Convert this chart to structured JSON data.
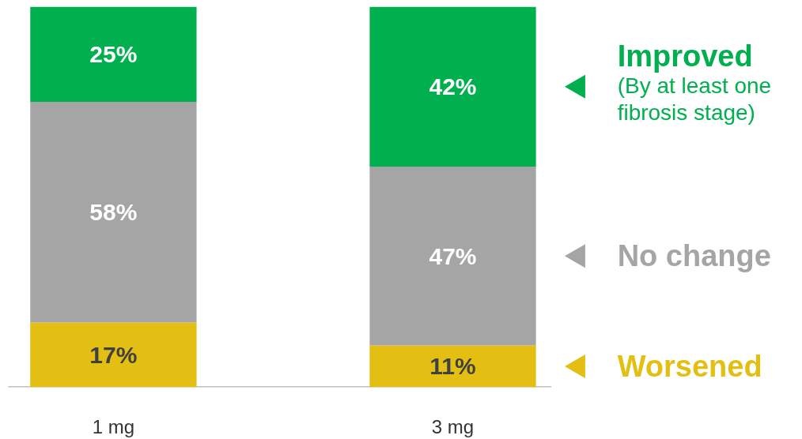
{
  "chart_data": {
    "type": "bar",
    "stacked": true,
    "categories": [
      "1 mg",
      "3 mg"
    ],
    "series": [
      {
        "name": "Worsened",
        "color": "#e3bf14",
        "values": [
          17,
          11
        ],
        "value_labels": [
          "17%",
          "11%"
        ]
      },
      {
        "name": "No change",
        "color": "#a5a5a5",
        "values": [
          58,
          47
        ],
        "value_labels": [
          "58%",
          "47%"
        ]
      },
      {
        "name": "Improved",
        "color": "#00b04f",
        "values": [
          25,
          42
        ],
        "value_labels": [
          "25%",
          "42%"
        ]
      }
    ],
    "legend": "right",
    "grid": false,
    "tick_labels": "x",
    "annotations": [
      "(By at least one\nfibrosis stage)"
    ]
  }
}
